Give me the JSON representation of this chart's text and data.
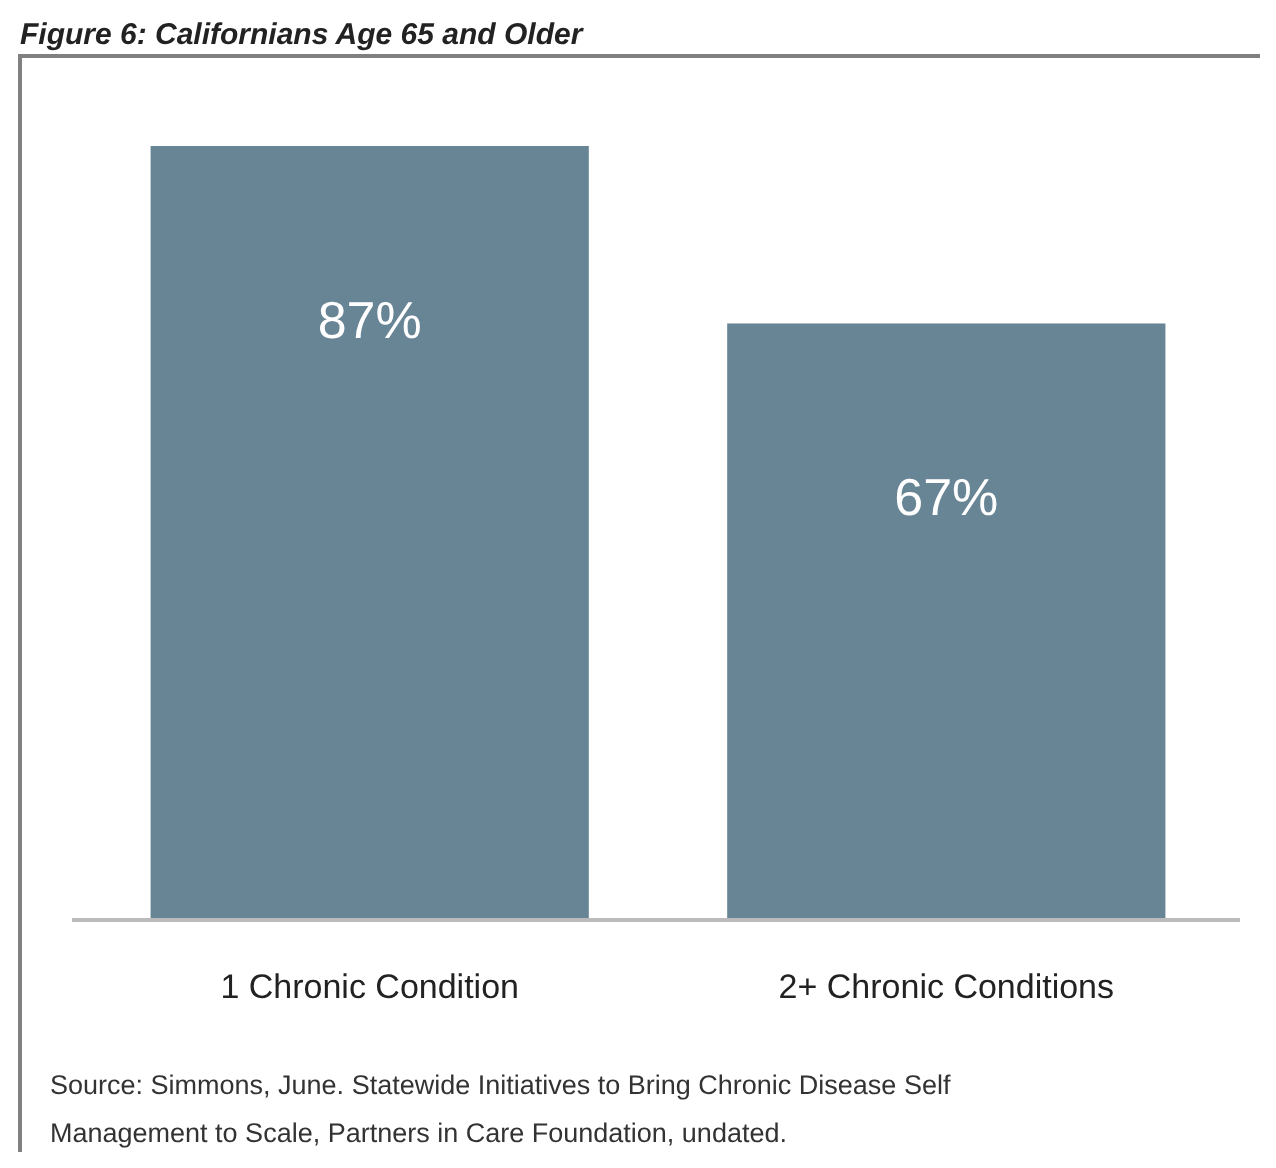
{
  "chart_data": {
    "type": "bar",
    "title": "Figure 6: Californians Age 65 and Older",
    "categories": [
      "1 Chronic Condition",
      "2+ Chronic Conditions"
    ],
    "values": [
      87,
      67
    ],
    "color": "#688595",
    "data_labels": true,
    "value_labels": [
      "87%",
      "67%"
    ],
    "annotations": [
      "Source: Simmons, June. Statewide Initiatives to Bring Chronic Disease Self",
      "Management to Scale, Partners in Care Foundation, undated."
    ]
  }
}
